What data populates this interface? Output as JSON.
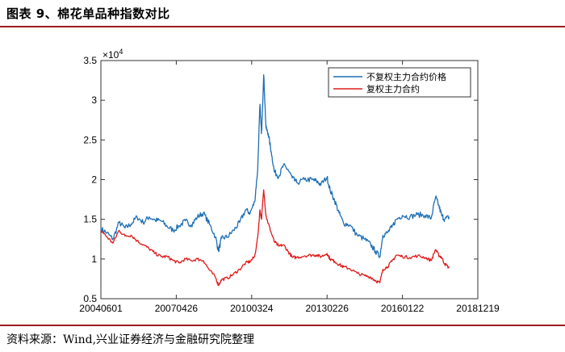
{
  "figure": {
    "title": "图表 9、棉花单品种指数对比",
    "source": "资料来源：Wind,兴业证券经济与金融研究院整理"
  },
  "chart_data": {
    "type": "line",
    "x_tick_labels": [
      "20040601",
      "20070426",
      "20100324",
      "20130226",
      "20160122",
      "20181219"
    ],
    "y_ticks": [
      0.5,
      1,
      1.5,
      2,
      2.5,
      3,
      3.5
    ],
    "y_tick_labels": [
      "0.5",
      "1",
      "1.5",
      "2",
      "2.5",
      "3",
      "3.5"
    ],
    "y_multiplier": "×10",
    "y_multiplier_exp": "4",
    "ylim": [
      0.5,
      3.5
    ],
    "xlim": [
      0,
      5
    ],
    "legend_position": "top-right",
    "grid": false,
    "colors": {
      "series1": "#1f6fb4",
      "series2": "#e01b1b"
    },
    "series": [
      {
        "name": "不复权主力合约价格",
        "points": [
          [
            0,
            1.38
          ],
          [
            0.08,
            1.33
          ],
          [
            0.16,
            1.25
          ],
          [
            0.24,
            1.46
          ],
          [
            0.32,
            1.39
          ],
          [
            0.4,
            1.44
          ],
          [
            0.48,
            1.53
          ],
          [
            0.56,
            1.46
          ],
          [
            0.64,
            1.53
          ],
          [
            0.72,
            1.49
          ],
          [
            0.8,
            1.48
          ],
          [
            0.88,
            1.41
          ],
          [
            0.96,
            1.36
          ],
          [
            1.04,
            1.42
          ],
          [
            1.12,
            1.48
          ],
          [
            1.2,
            1.43
          ],
          [
            1.28,
            1.53
          ],
          [
            1.36,
            1.58
          ],
          [
            1.44,
            1.44
          ],
          [
            1.52,
            1.28
          ],
          [
            1.56,
            1.1
          ],
          [
            1.6,
            1.26
          ],
          [
            1.68,
            1.28
          ],
          [
            1.76,
            1.36
          ],
          [
            1.84,
            1.46
          ],
          [
            1.92,
            1.62
          ],
          [
            1.98,
            1.58
          ],
          [
            2.04,
            1.72
          ],
          [
            2.08,
            2.13
          ],
          [
            2.11,
            2.95
          ],
          [
            2.13,
            2.58
          ],
          [
            2.16,
            3.32
          ],
          [
            2.19,
            2.65
          ],
          [
            2.22,
            2.58
          ],
          [
            2.26,
            2.35
          ],
          [
            2.3,
            2.1
          ],
          [
            2.36,
            2.04
          ],
          [
            2.42,
            2.18
          ],
          [
            2.48,
            2.13
          ],
          [
            2.54,
            2.02
          ],
          [
            2.6,
            1.96
          ],
          [
            2.7,
            2.0
          ],
          [
            2.8,
            2.0
          ],
          [
            2.86,
            1.98
          ],
          [
            2.92,
            1.94
          ],
          [
            3.0,
            2.03
          ],
          [
            3.04,
            1.87
          ],
          [
            3.1,
            1.74
          ],
          [
            3.16,
            1.58
          ],
          [
            3.22,
            1.45
          ],
          [
            3.3,
            1.43
          ],
          [
            3.4,
            1.3
          ],
          [
            3.5,
            1.25
          ],
          [
            3.58,
            1.18
          ],
          [
            3.64,
            1.1
          ],
          [
            3.7,
            1.03
          ],
          [
            3.74,
            1.3
          ],
          [
            3.8,
            1.33
          ],
          [
            3.86,
            1.4
          ],
          [
            3.92,
            1.5
          ],
          [
            4.0,
            1.55
          ],
          [
            4.1,
            1.53
          ],
          [
            4.2,
            1.56
          ],
          [
            4.3,
            1.55
          ],
          [
            4.38,
            1.51
          ],
          [
            4.44,
            1.78
          ],
          [
            4.48,
            1.68
          ],
          [
            4.52,
            1.55
          ],
          [
            4.56,
            1.5
          ],
          [
            4.62,
            1.53
          ]
        ]
      },
      {
        "name": "复权主力合约",
        "points": [
          [
            0,
            1.36
          ],
          [
            0.08,
            1.28
          ],
          [
            0.16,
            1.2
          ],
          [
            0.24,
            1.36
          ],
          [
            0.32,
            1.29
          ],
          [
            0.4,
            1.3
          ],
          [
            0.48,
            1.23
          ],
          [
            0.56,
            1.18
          ],
          [
            0.64,
            1.13
          ],
          [
            0.72,
            1.07
          ],
          [
            0.8,
            1.03
          ],
          [
            0.88,
            1.03
          ],
          [
            0.96,
            0.98
          ],
          [
            1.04,
            0.95
          ],
          [
            1.12,
            1.0
          ],
          [
            1.2,
            0.98
          ],
          [
            1.28,
            1.0
          ],
          [
            1.36,
            0.98
          ],
          [
            1.44,
            0.86
          ],
          [
            1.52,
            0.77
          ],
          [
            1.56,
            0.67
          ],
          [
            1.6,
            0.74
          ],
          [
            1.68,
            0.76
          ],
          [
            1.76,
            0.81
          ],
          [
            1.84,
            0.87
          ],
          [
            1.92,
            0.95
          ],
          [
            1.98,
            0.97
          ],
          [
            2.04,
            1.03
          ],
          [
            2.08,
            1.27
          ],
          [
            2.11,
            1.62
          ],
          [
            2.13,
            1.5
          ],
          [
            2.16,
            1.87
          ],
          [
            2.19,
            1.55
          ],
          [
            2.22,
            1.45
          ],
          [
            2.26,
            1.33
          ],
          [
            2.3,
            1.22
          ],
          [
            2.36,
            1.16
          ],
          [
            2.42,
            1.18
          ],
          [
            2.48,
            1.1
          ],
          [
            2.54,
            1.02
          ],
          [
            2.6,
            1.02
          ],
          [
            2.7,
            1.04
          ],
          [
            2.8,
            1.05
          ],
          [
            2.86,
            1.05
          ],
          [
            2.92,
            1.03
          ],
          [
            3.0,
            1.07
          ],
          [
            3.04,
            1.0
          ],
          [
            3.1,
            0.97
          ],
          [
            3.16,
            0.93
          ],
          [
            3.22,
            0.9
          ],
          [
            3.3,
            0.88
          ],
          [
            3.4,
            0.82
          ],
          [
            3.5,
            0.79
          ],
          [
            3.58,
            0.77
          ],
          [
            3.64,
            0.73
          ],
          [
            3.7,
            0.7
          ],
          [
            3.74,
            0.87
          ],
          [
            3.8,
            0.9
          ],
          [
            3.86,
            0.97
          ],
          [
            3.92,
            1.05
          ],
          [
            4.0,
            1.03
          ],
          [
            4.1,
            1.02
          ],
          [
            4.2,
            1.04
          ],
          [
            4.3,
            1.02
          ],
          [
            4.38,
            0.98
          ],
          [
            4.44,
            1.12
          ],
          [
            4.48,
            1.05
          ],
          [
            4.52,
            1.02
          ],
          [
            4.56,
            0.94
          ],
          [
            4.62,
            0.89
          ]
        ]
      }
    ]
  }
}
